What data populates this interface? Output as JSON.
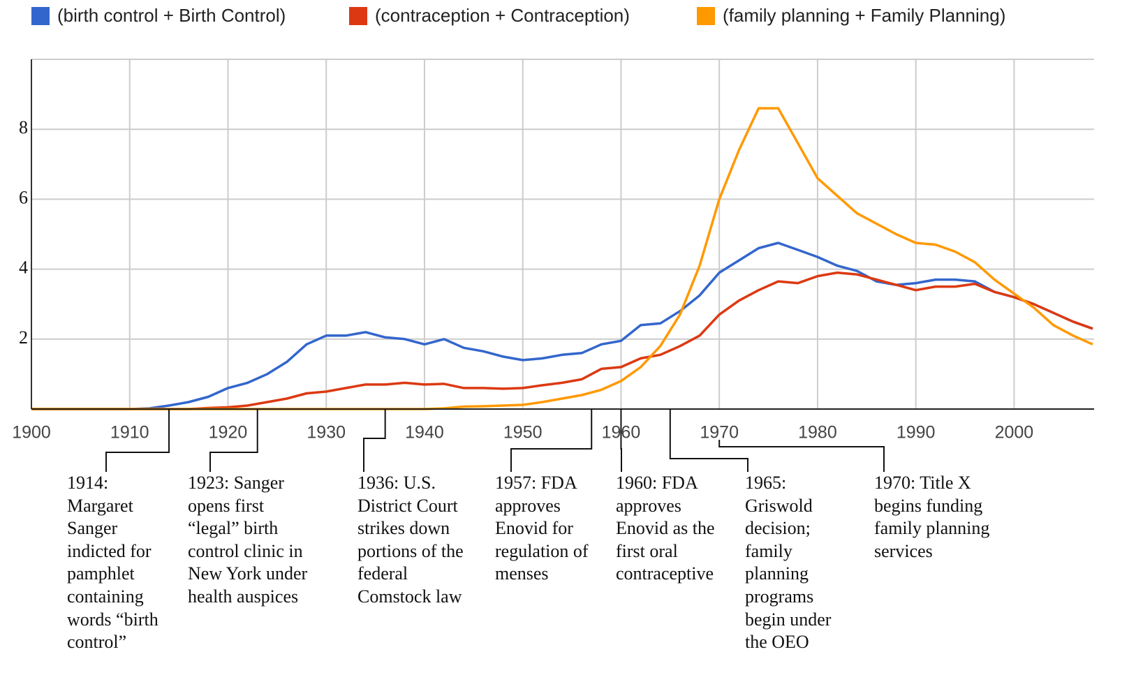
{
  "chart_data": {
    "type": "line",
    "x": [
      1900,
      1902,
      1904,
      1906,
      1908,
      1910,
      1912,
      1914,
      1916,
      1918,
      1920,
      1922,
      1924,
      1926,
      1928,
      1930,
      1932,
      1934,
      1936,
      1938,
      1940,
      1942,
      1944,
      1946,
      1948,
      1950,
      1952,
      1954,
      1956,
      1958,
      1960,
      1962,
      1964,
      1966,
      1968,
      1970,
      1972,
      1974,
      1976,
      1978,
      1980,
      1982,
      1984,
      1986,
      1988,
      1990,
      1992,
      1994,
      1996,
      1998,
      2000,
      2002,
      2004,
      2006,
      2008
    ],
    "series": [
      {
        "name": "(birth control + Birth Control)",
        "color": "#3366cc",
        "values": [
          0,
          0,
          0,
          0,
          0,
          0,
          0.02,
          0.1,
          0.2,
          0.35,
          0.6,
          0.75,
          1.0,
          1.35,
          1.85,
          2.1,
          2.1,
          2.2,
          2.05,
          2.0,
          1.85,
          2.0,
          1.75,
          1.65,
          1.5,
          1.4,
          1.45,
          1.55,
          1.6,
          1.85,
          1.95,
          2.4,
          2.45,
          2.8,
          3.25,
          3.9,
          4.25,
          4.6,
          4.75,
          4.55,
          4.35,
          4.1,
          3.95,
          3.65,
          3.55,
          3.6,
          3.7,
          3.7,
          3.65,
          3.35,
          3.2,
          3.0,
          2.75,
          2.5,
          2.3
        ]
      },
      {
        "name": "(contraception + Contraception)",
        "color": "#dc3912",
        "values": [
          0,
          0,
          0,
          0,
          0,
          0,
          0,
          0,
          0,
          0.03,
          0.05,
          0.1,
          0.2,
          0.3,
          0.45,
          0.5,
          0.6,
          0.7,
          0.7,
          0.75,
          0.7,
          0.72,
          0.6,
          0.6,
          0.58,
          0.6,
          0.68,
          0.75,
          0.85,
          1.15,
          1.2,
          1.45,
          1.55,
          1.8,
          2.1,
          2.7,
          3.1,
          3.4,
          3.65,
          3.6,
          3.8,
          3.9,
          3.85,
          3.7,
          3.55,
          3.4,
          3.5,
          3.5,
          3.58,
          3.35,
          3.2,
          3.0,
          2.75,
          2.5,
          2.3
        ]
      },
      {
        "name": "(family planning + Family Planning)",
        "color": "#ff9900",
        "values": [
          0,
          0,
          0,
          0,
          0,
          0,
          0,
          0,
          0,
          0,
          0,
          0,
          0,
          0,
          0,
          0,
          0,
          0,
          0,
          0,
          0,
          0.02,
          0.07,
          0.08,
          0.1,
          0.12,
          0.2,
          0.3,
          0.4,
          0.55,
          0.8,
          1.2,
          1.8,
          2.7,
          4.1,
          6.0,
          7.4,
          8.6,
          8.6,
          7.6,
          6.6,
          6.1,
          5.6,
          5.3,
          5.0,
          4.75,
          4.7,
          4.5,
          4.2,
          3.7,
          3.3,
          2.9,
          2.4,
          2.1,
          1.85
        ]
      }
    ],
    "xlim": [
      1900,
      2008
    ],
    "xticks": [
      1900,
      1910,
      1920,
      1930,
      1940,
      1950,
      1960,
      1970,
      1980,
      1990,
      2000
    ],
    "ylim": [
      0,
      10
    ],
    "yticks": [
      2,
      4,
      6,
      8
    ],
    "grid": true,
    "legend": "top",
    "annotations": [
      {
        "x": 1914,
        "text": "1914: Margaret Sanger indicted for pamphlet containing words “birth control”"
      },
      {
        "x": 1923,
        "text": "1923: Sanger opens first “legal” birth control clinic in New York under health auspices"
      },
      {
        "x": 1936,
        "text": "1936: U.S. District Court strikes down portions of the federal Comstock law"
      },
      {
        "x": 1957,
        "text": "1957: FDA approves Enovid for regulation of menses"
      },
      {
        "x": 1960,
        "text": "1960: FDA approves Enovid as the first oral contraceptive"
      },
      {
        "x": 1965,
        "text": "1965: Griswold decision; family planning programs begin under the OEO"
      },
      {
        "x": 1970,
        "text": "1970: Title X begins funding family planning services"
      }
    ]
  }
}
